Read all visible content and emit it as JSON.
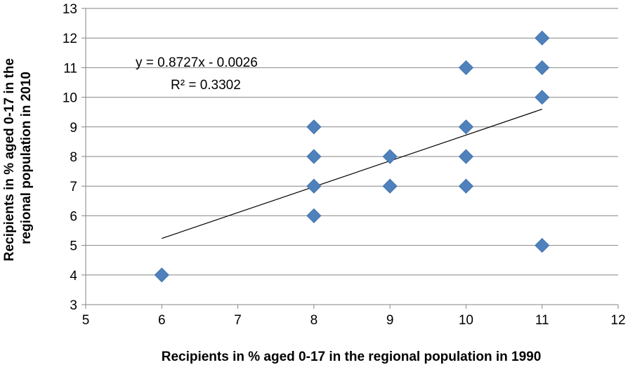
{
  "chart_data": {
    "type": "scatter",
    "title": "",
    "xlabel": "Recipients in % aged 0-17 in the regional population  in 1990",
    "ylabel_lines": [
      "Recipients in % aged 0-17 in the",
      "regional population  in 2010"
    ],
    "xlim": [
      5,
      12
    ],
    "ylim": [
      3,
      13
    ],
    "xticks": [
      5,
      6,
      7,
      8,
      9,
      10,
      11,
      12
    ],
    "yticks": [
      3,
      4,
      5,
      6,
      7,
      8,
      9,
      10,
      11,
      12,
      13
    ],
    "grid": "horizontal",
    "legend": "none",
    "marker": "diamond",
    "marker_color": "#4f81bd",
    "points": [
      {
        "x": 6,
        "y": 4
      },
      {
        "x": 8,
        "y": 6
      },
      {
        "x": 8,
        "y": 7
      },
      {
        "x": 8,
        "y": 8
      },
      {
        "x": 8,
        "y": 9
      },
      {
        "x": 9,
        "y": 7
      },
      {
        "x": 9,
        "y": 8
      },
      {
        "x": 10,
        "y": 7
      },
      {
        "x": 10,
        "y": 8
      },
      {
        "x": 10,
        "y": 9
      },
      {
        "x": 10,
        "y": 11
      },
      {
        "x": 11,
        "y": 5
      },
      {
        "x": 11,
        "y": 10
      },
      {
        "x": 11,
        "y": 11
      },
      {
        "x": 11,
        "y": 12
      }
    ],
    "trendline": {
      "type": "linear",
      "slope": 0.8727,
      "intercept": -0.0026,
      "x_range": [
        6,
        11
      ],
      "color": "#000000",
      "equation_label": "y = 0.8727x - 0.0026",
      "r2_label": "R² = 0.3302"
    }
  }
}
